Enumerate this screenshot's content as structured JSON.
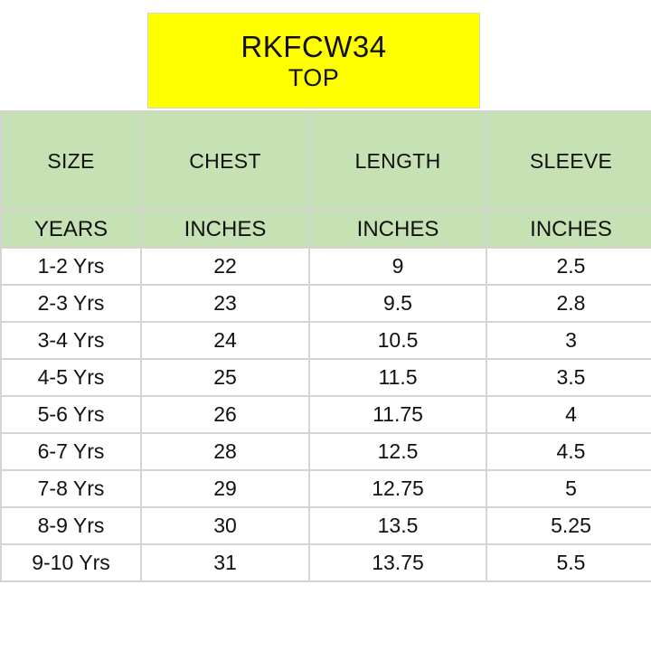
{
  "title": {
    "code": "RKFCW34",
    "subtitle": "TOP"
  },
  "table": {
    "headers": [
      "SIZE",
      "CHEST",
      "LENGTH",
      "SLEEVE"
    ],
    "units": [
      "YEARS",
      "INCHES",
      "INCHES",
      "INCHES"
    ],
    "rows": [
      [
        "1-2 Yrs",
        "22",
        "9",
        "2.5"
      ],
      [
        "2-3 Yrs",
        "23",
        "9.5",
        "2.8"
      ],
      [
        "3-4 Yrs",
        "24",
        "10.5",
        "3"
      ],
      [
        "4-5 Yrs",
        "25",
        "11.5",
        "3.5"
      ],
      [
        "5-6 Yrs",
        "26",
        "11.75",
        "4"
      ],
      [
        "6-7 Yrs",
        "28",
        "12.5",
        "4.5"
      ],
      [
        "7-8 Yrs",
        "29",
        "12.75",
        "5"
      ],
      [
        "8-9 Yrs",
        "30",
        "13.5",
        "5.25"
      ],
      [
        "9-10 Yrs",
        "31",
        "13.75",
        "5.5"
      ]
    ]
  },
  "colors": {
    "title_background": "#ffff00",
    "header_background": "#c6e2b4",
    "grid": "#d4d4d4"
  }
}
